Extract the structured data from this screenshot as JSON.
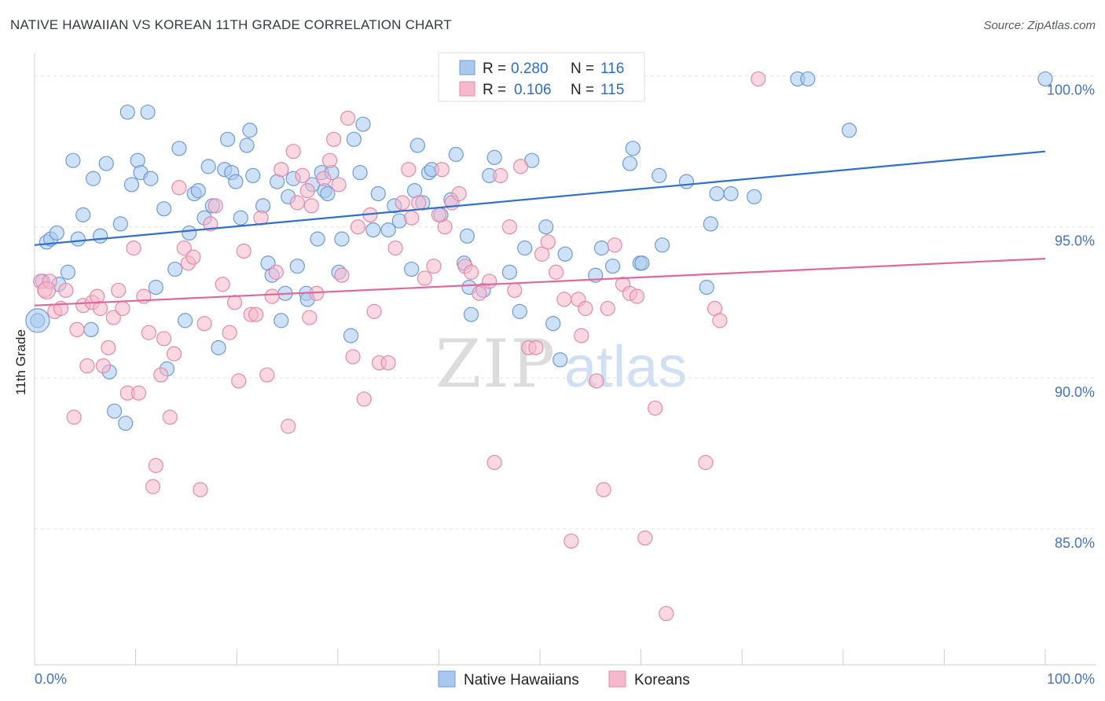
{
  "title": "NATIVE HAWAIIAN VS KOREAN 11TH GRADE CORRELATION CHART",
  "source": "Source: ZipAtlas.com",
  "watermark": {
    "zip": "ZIP",
    "atlas": "atlas"
  },
  "legend_top": {
    "r_label": "R =",
    "n_label": "N =",
    "rows": [
      {
        "name": "Native Hawaiians",
        "r": "0.280",
        "n": "116"
      },
      {
        "name": "Koreans",
        "r": "0.106",
        "n": "115"
      }
    ]
  },
  "colors": {
    "blue_fill": "#a8c8f0",
    "blue_stroke": "#6c9bd8",
    "blue_line": "#2f6fd0",
    "pink_fill": "#f6b8cb",
    "pink_stroke": "#e58aa8",
    "pink_line": "#e0689a",
    "grid": "#e3e3e3",
    "axis": "#cccccc"
  },
  "chart_data": {
    "type": "scatter",
    "title": "NATIVE HAWAIIAN VS KOREAN 11TH GRADE CORRELATION CHART",
    "xlabel": "",
    "ylabel": "11th Grade",
    "xlim": [
      0,
      100
    ],
    "ylim": [
      80.5,
      100.9
    ],
    "x_tick_labels": [
      "0.0%",
      "100.0%"
    ],
    "y_ticks": [
      85,
      90,
      95,
      100
    ],
    "y_tick_labels": [
      "85.0%",
      "90.0%",
      "95.0%",
      "100.0%"
    ],
    "legend": [
      "Native Hawaiians",
      "Koreans"
    ],
    "series": [
      {
        "name": "Native Hawaiians",
        "r": 0.28,
        "n": 116,
        "trend": {
          "x": [
            0,
            100
          ],
          "y": [
            94.4,
            97.5
          ]
        },
        "points": [
          [
            0.3,
            91.9
          ],
          [
            0.8,
            93.2
          ],
          [
            1.2,
            94.5
          ],
          [
            1.6,
            94.6
          ],
          [
            2.2,
            94.8
          ],
          [
            2.4,
            93.1
          ],
          [
            3.3,
            93.5
          ],
          [
            3.8,
            97.2
          ],
          [
            4.3,
            94.6
          ],
          [
            4.8,
            95.4
          ],
          [
            5.6,
            91.6
          ],
          [
            5.8,
            96.6
          ],
          [
            6.5,
            94.7
          ],
          [
            7.1,
            97.1
          ],
          [
            7.4,
            90.2
          ],
          [
            7.9,
            88.9
          ],
          [
            8.5,
            95.1
          ],
          [
            9.0,
            88.5
          ],
          [
            9.2,
            98.8
          ],
          [
            9.6,
            96.4
          ],
          [
            10.2,
            97.2
          ],
          [
            10.5,
            96.8
          ],
          [
            11.2,
            98.8
          ],
          [
            11.5,
            96.6
          ],
          [
            12.0,
            93.0
          ],
          [
            12.8,
            95.6
          ],
          [
            13.1,
            90.3
          ],
          [
            13.9,
            93.6
          ],
          [
            14.3,
            97.6
          ],
          [
            14.9,
            91.9
          ],
          [
            15.3,
            94.8
          ],
          [
            15.8,
            96.1
          ],
          [
            16.2,
            96.2
          ],
          [
            16.8,
            95.3
          ],
          [
            17.2,
            97.0
          ],
          [
            17.6,
            95.7
          ],
          [
            18.2,
            91.0
          ],
          [
            18.8,
            96.9
          ],
          [
            19.1,
            97.9
          ],
          [
            19.5,
            96.8
          ],
          [
            19.9,
            96.5
          ],
          [
            20.4,
            95.3
          ],
          [
            21.0,
            97.7
          ],
          [
            21.3,
            98.2
          ],
          [
            21.6,
            96.7
          ],
          [
            22.6,
            95.7
          ],
          [
            23.1,
            93.8
          ],
          [
            23.5,
            93.4
          ],
          [
            24.0,
            96.5
          ],
          [
            24.4,
            91.9
          ],
          [
            24.8,
            92.8
          ],
          [
            25.1,
            96.0
          ],
          [
            25.6,
            96.6
          ],
          [
            26.0,
            93.7
          ],
          [
            26.9,
            92.8
          ],
          [
            27.0,
            92.6
          ],
          [
            27.5,
            96.4
          ],
          [
            28.0,
            94.6
          ],
          [
            28.4,
            96.8
          ],
          [
            28.7,
            96.2
          ],
          [
            29.0,
            96.1
          ],
          [
            29.4,
            96.8
          ],
          [
            30.1,
            93.5
          ],
          [
            30.4,
            94.6
          ],
          [
            31.3,
            91.4
          ],
          [
            31.6,
            97.9
          ],
          [
            32.2,
            96.8
          ],
          [
            32.5,
            98.4
          ],
          [
            33.5,
            94.9
          ],
          [
            34.0,
            96.1
          ],
          [
            35.0,
            94.9
          ],
          [
            35.6,
            95.7
          ],
          [
            36.1,
            95.2
          ],
          [
            37.3,
            93.6
          ],
          [
            37.6,
            96.2
          ],
          [
            37.9,
            97.7
          ],
          [
            38.4,
            95.8
          ],
          [
            39.0,
            96.8
          ],
          [
            39.3,
            96.9
          ],
          [
            40.2,
            95.4
          ],
          [
            41.2,
            95.9
          ],
          [
            41.7,
            97.4
          ],
          [
            42.5,
            93.8
          ],
          [
            42.8,
            94.7
          ],
          [
            43.0,
            93.0
          ],
          [
            43.2,
            92.1
          ],
          [
            44.4,
            92.9
          ],
          [
            45.0,
            96.7
          ],
          [
            45.5,
            97.3
          ],
          [
            47.0,
            93.5
          ],
          [
            48.0,
            92.2
          ],
          [
            48.5,
            94.3
          ],
          [
            49.2,
            97.2
          ],
          [
            50.6,
            95.0
          ],
          [
            51.3,
            91.8
          ],
          [
            52.0,
            90.6
          ],
          [
            52.5,
            94.1
          ],
          [
            55.5,
            93.4
          ],
          [
            56.1,
            94.3
          ],
          [
            57.2,
            93.7
          ],
          [
            58.9,
            97.1
          ],
          [
            59.2,
            97.6
          ],
          [
            59.9,
            93.8
          ],
          [
            60.1,
            93.8
          ],
          [
            61.8,
            96.7
          ],
          [
            62.1,
            94.4
          ],
          [
            64.5,
            96.5
          ],
          [
            66.5,
            93.0
          ],
          [
            66.9,
            95.1
          ],
          [
            67.5,
            96.1
          ],
          [
            68.9,
            96.1
          ],
          [
            71.2,
            96.0
          ],
          [
            75.5,
            99.9
          ],
          [
            76.5,
            99.9
          ],
          [
            80.6,
            98.2
          ],
          [
            100.0,
            99.9
          ]
        ]
      },
      {
        "name": "Koreans",
        "r": 0.106,
        "n": 115,
        "trend": {
          "x": [
            0,
            100
          ],
          "y": [
            92.4,
            93.95
          ]
        },
        "points": [
          [
            0.6,
            93.2
          ],
          [
            1.0,
            92.9
          ],
          [
            1.5,
            93.2
          ],
          [
            2.0,
            92.2
          ],
          [
            2.6,
            92.3
          ],
          [
            3.1,
            92.9
          ],
          [
            3.9,
            88.7
          ],
          [
            4.2,
            91.6
          ],
          [
            4.8,
            92.4
          ],
          [
            5.2,
            90.4
          ],
          [
            5.7,
            92.5
          ],
          [
            6.2,
            92.7
          ],
          [
            6.8,
            90.4
          ],
          [
            7.3,
            91.0
          ],
          [
            7.8,
            92.0
          ],
          [
            8.3,
            92.9
          ],
          [
            8.7,
            92.3
          ],
          [
            9.2,
            89.5
          ],
          [
            9.8,
            94.3
          ],
          [
            10.3,
            89.5
          ],
          [
            10.8,
            92.7
          ],
          [
            11.3,
            91.5
          ],
          [
            11.7,
            86.4
          ],
          [
            12.0,
            87.1
          ],
          [
            12.5,
            90.1
          ],
          [
            12.8,
            91.3
          ],
          [
            13.4,
            88.7
          ],
          [
            13.8,
            90.8
          ],
          [
            14.3,
            96.3
          ],
          [
            14.8,
            94.3
          ],
          [
            15.2,
            93.8
          ],
          [
            15.7,
            94.0
          ],
          [
            16.4,
            86.3
          ],
          [
            16.8,
            91.8
          ],
          [
            17.4,
            95.1
          ],
          [
            17.9,
            95.7
          ],
          [
            18.6,
            93.1
          ],
          [
            19.3,
            91.5
          ],
          [
            19.8,
            92.5
          ],
          [
            20.2,
            89.9
          ],
          [
            20.7,
            94.2
          ],
          [
            21.4,
            92.1
          ],
          [
            21.9,
            92.1
          ],
          [
            22.4,
            95.3
          ],
          [
            23.0,
            90.1
          ],
          [
            23.5,
            92.7
          ],
          [
            23.9,
            93.5
          ],
          [
            24.4,
            96.9
          ],
          [
            25.1,
            88.4
          ],
          [
            25.6,
            97.5
          ],
          [
            26.0,
            95.8
          ],
          [
            26.5,
            96.7
          ],
          [
            27.0,
            96.2
          ],
          [
            27.4,
            95.7
          ],
          [
            27.9,
            92.8
          ],
          [
            28.6,
            96.6
          ],
          [
            29.2,
            97.2
          ],
          [
            29.6,
            97.9
          ],
          [
            30.1,
            96.4
          ],
          [
            30.4,
            93.4
          ],
          [
            31.0,
            98.6
          ],
          [
            31.5,
            90.7
          ],
          [
            32.0,
            95.0
          ],
          [
            32.6,
            89.3
          ],
          [
            33.2,
            95.4
          ],
          [
            33.6,
            92.2
          ],
          [
            34.1,
            90.5
          ],
          [
            35.0,
            90.5
          ],
          [
            35.7,
            94.3
          ],
          [
            36.4,
            95.8
          ],
          [
            37.0,
            96.9
          ],
          [
            37.3,
            95.3
          ],
          [
            38.0,
            95.8
          ],
          [
            38.6,
            93.3
          ],
          [
            39.5,
            93.7
          ],
          [
            40.0,
            95.4
          ],
          [
            40.6,
            95.0
          ],
          [
            41.3,
            95.8
          ],
          [
            42.0,
            96.1
          ],
          [
            42.6,
            93.7
          ],
          [
            43.2,
            93.5
          ],
          [
            44.0,
            92.8
          ],
          [
            45.0,
            93.2
          ],
          [
            45.5,
            87.2
          ],
          [
            46.1,
            96.7
          ],
          [
            47.0,
            95.0
          ],
          [
            47.5,
            92.9
          ],
          [
            48.1,
            97.0
          ],
          [
            48.9,
            91.0
          ],
          [
            49.6,
            91.0
          ],
          [
            50.2,
            94.1
          ],
          [
            50.8,
            94.5
          ],
          [
            51.6,
            93.5
          ],
          [
            52.4,
            92.6
          ],
          [
            53.1,
            84.6
          ],
          [
            53.8,
            92.6
          ],
          [
            54.1,
            91.4
          ],
          [
            54.5,
            92.3
          ],
          [
            55.6,
            89.9
          ],
          [
            56.3,
            86.3
          ],
          [
            56.7,
            92.3
          ],
          [
            57.4,
            94.4
          ],
          [
            58.2,
            93.1
          ],
          [
            58.9,
            92.8
          ],
          [
            59.6,
            92.7
          ],
          [
            60.4,
            84.7
          ],
          [
            61.4,
            89.0
          ],
          [
            62.5,
            82.2
          ],
          [
            66.4,
            87.2
          ],
          [
            67.3,
            92.3
          ],
          [
            67.8,
            91.9
          ],
          [
            71.6,
            99.9
          ],
          [
            40.3,
            96.9
          ],
          [
            27.2,
            92.0
          ],
          [
            6.5,
            92.3
          ]
        ]
      }
    ]
  },
  "legend_bottom": [
    "Native Hawaiians",
    "Koreans"
  ]
}
